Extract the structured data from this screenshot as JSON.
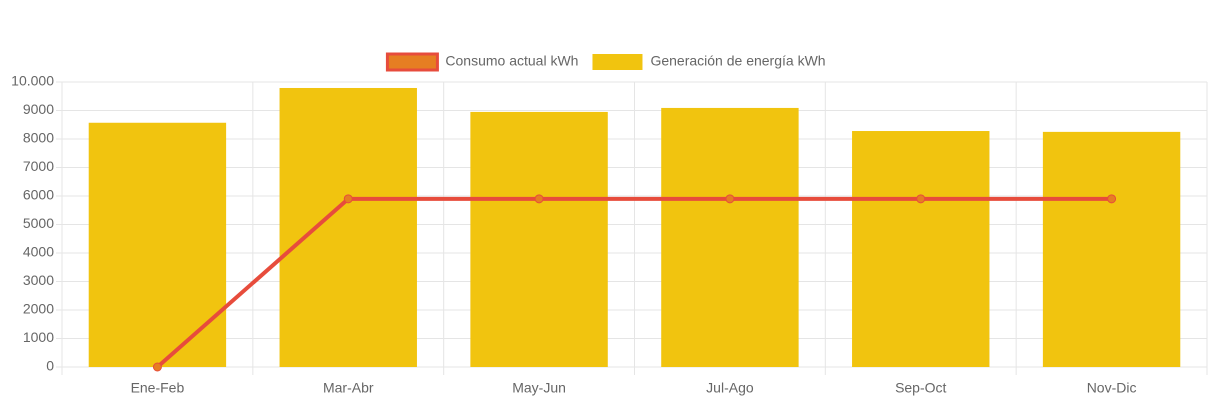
{
  "chart_data": {
    "type": "bar",
    "categories": [
      "Ene-Feb",
      "Mar-Abr",
      "May-Jun",
      "Jul-Ago",
      "Sep-Oct",
      "Nov-Dic"
    ],
    "series": [
      {
        "name": "Consumo actual kWh",
        "type": "line",
        "color": "#e74c3c",
        "point_color": "#e67e22",
        "values": [
          0,
          5900,
          5900,
          5900,
          5900,
          5900
        ]
      },
      {
        "name": "Generación de energía kWh",
        "type": "bar",
        "color": "#f1c40f",
        "values": [
          8570,
          9790,
          8950,
          9090,
          8280,
          8250
        ]
      }
    ],
    "ylim": [
      0,
      10000
    ],
    "yticks": [
      0,
      1000,
      2000,
      3000,
      4000,
      5000,
      6000,
      7000,
      8000,
      9000,
      {
        "value": 10000,
        "label": "10.000"
      }
    ],
    "grid": true,
    "legend": "top"
  }
}
